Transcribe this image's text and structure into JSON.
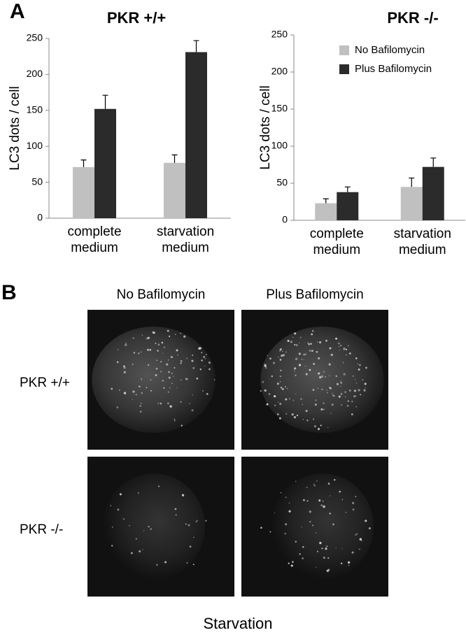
{
  "panel_labels": [
    "A",
    "B"
  ],
  "chart_data": [
    {
      "type": "bar",
      "title": "PKR +/+",
      "ylabel": "LC3 dots / cell",
      "categories": [
        "complete medium",
        "starvation medium"
      ],
      "series": [
        {
          "color": "#c0c0c0",
          "values": [
            71,
            77
          ],
          "errors": [
            10,
            11
          ]
        },
        {
          "color": "#2b2b2b",
          "values": [
            152,
            231
          ],
          "errors": [
            19,
            16
          ]
        }
      ],
      "ylim": [
        0,
        250
      ],
      "yticks": [
        0,
        50,
        100,
        150,
        200,
        250
      ]
    },
    {
      "type": "bar",
      "title": "PKR -/-",
      "ylabel": "LC3 dots / cell",
      "categories": [
        "complete medium",
        "starvation medium"
      ],
      "series": [
        {
          "name": "No Bafilomycin",
          "color": "#c0c0c0",
          "values": [
            23,
            45
          ],
          "errors": [
            6,
            12
          ]
        },
        {
          "name": "Plus Bafilomycin",
          "color": "#2b2b2b",
          "values": [
            38,
            72
          ],
          "errors": [
            7,
            12
          ]
        }
      ],
      "ylim": [
        0,
        250
      ],
      "yticks": [
        0,
        50,
        100,
        150,
        200,
        250
      ],
      "legend": "upper right"
    }
  ],
  "panel_b": {
    "columns": [
      "No Bafilomycin",
      "Plus Bafilomycin"
    ],
    "rows": [
      "PKR +/+",
      "PKR -/-"
    ],
    "caption": "Starvation"
  }
}
